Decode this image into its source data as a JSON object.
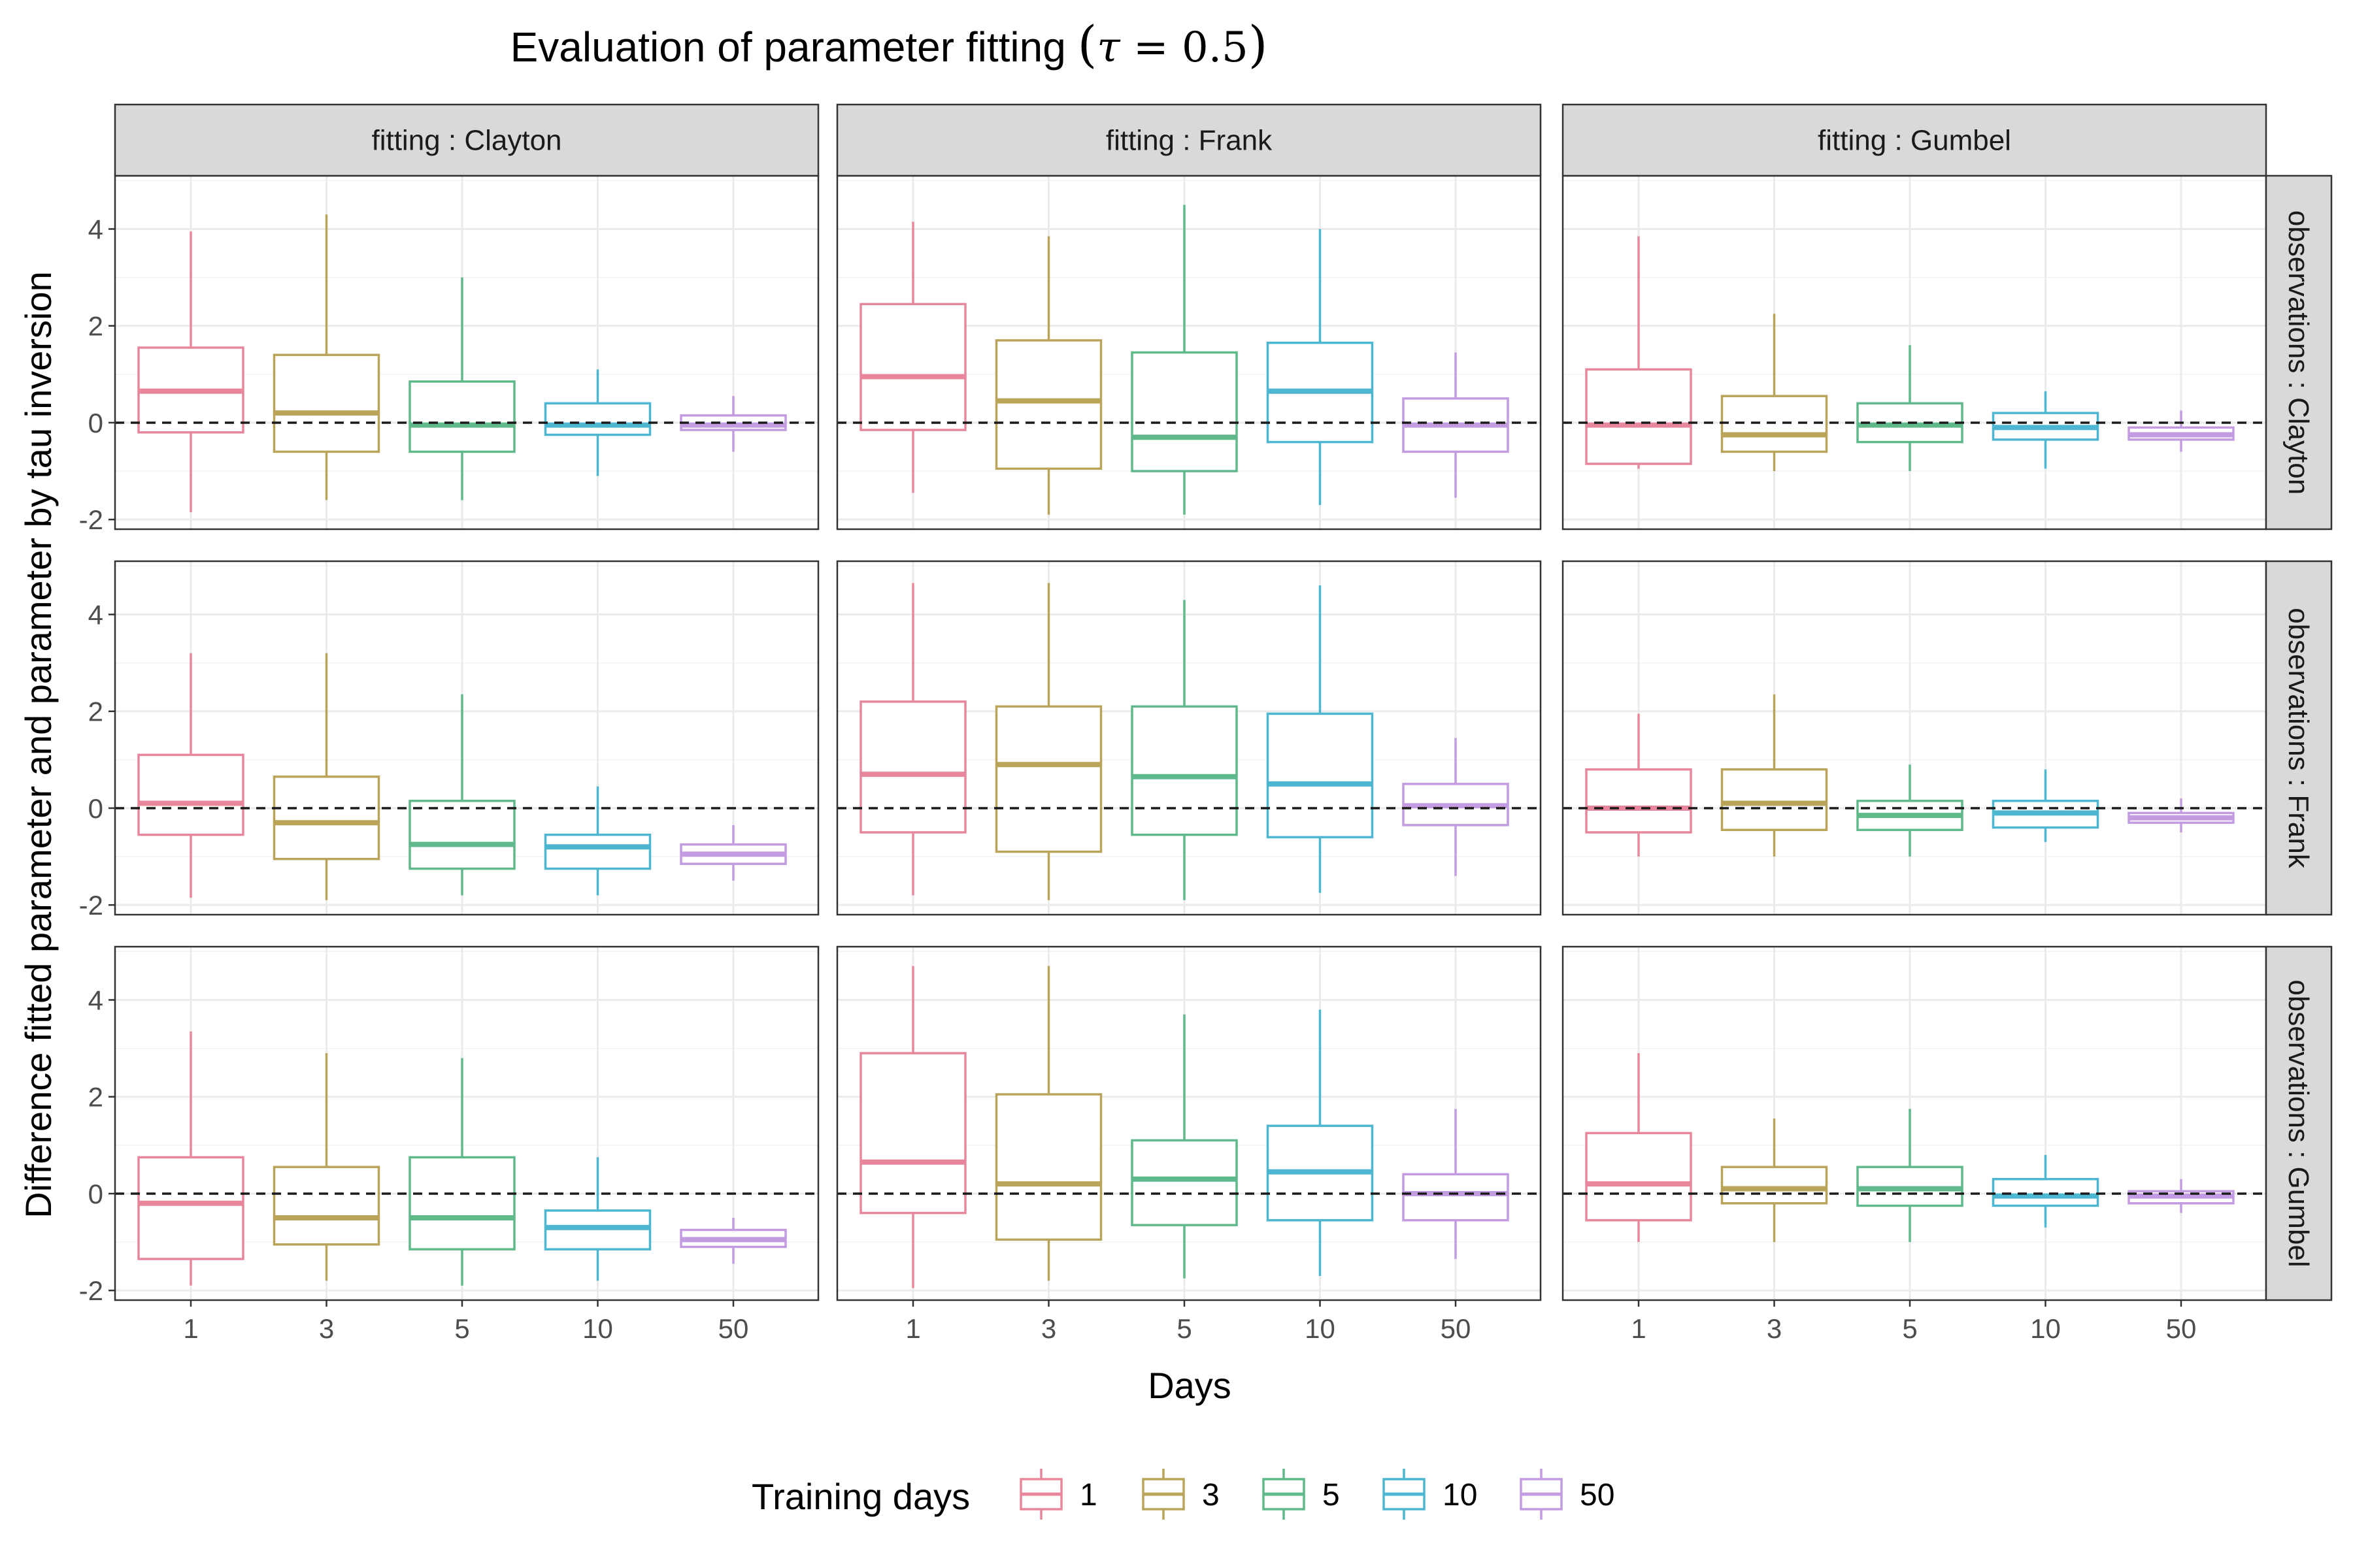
{
  "chart_data": {
    "type": "boxplot",
    "title": "Evaluation of parameter fitting (τ = 0.5)",
    "title_parts": {
      "prefix": "Evaluation of parameter fitting ",
      "tau": "τ",
      "eq": " = 0.5"
    },
    "xlabel": "Days",
    "ylabel": "Difference fitted parameter and parameter by tau inversion",
    "categories": [
      "1",
      "3",
      "5",
      "10",
      "50"
    ],
    "ylim": [
      -2.2,
      5.1
    ],
    "yticks": [
      -2,
      0,
      2,
      4
    ],
    "ytick_labels": [
      "-2",
      "0",
      "2",
      "4"
    ],
    "reference_line": 0,
    "columns": [
      "fitting : Clayton",
      "fitting : Frank",
      "fitting : Gumbel"
    ],
    "rows": [
      "observations : Clayton",
      "observations : Frank",
      "observations : Gumbel"
    ],
    "legend": {
      "title": "Training days",
      "position": "bottom",
      "entries": [
        {
          "label": "1",
          "color": "#E8879C"
        },
        {
          "label": "3",
          "color": "#B9A45A"
        },
        {
          "label": "5",
          "color": "#5FB98A"
        },
        {
          "label": "10",
          "color": "#4DB6D0"
        },
        {
          "label": "50",
          "color": "#C39BE0"
        }
      ]
    },
    "panels": [
      {
        "row": 0,
        "col": 0,
        "boxes": [
          [
            -1.85,
            -0.2,
            0.65,
            1.55,
            3.95
          ],
          [
            -1.6,
            -0.6,
            0.2,
            1.4,
            4.3
          ],
          [
            -1.6,
            -0.6,
            -0.05,
            0.85,
            3.0
          ],
          [
            -1.1,
            -0.25,
            -0.05,
            0.4,
            1.1
          ],
          [
            -0.6,
            -0.15,
            -0.05,
            0.15,
            0.55
          ]
        ]
      },
      {
        "row": 0,
        "col": 1,
        "boxes": [
          [
            -1.45,
            -0.15,
            0.95,
            2.45,
            4.15
          ],
          [
            -1.9,
            -0.95,
            0.45,
            1.7,
            3.85
          ],
          [
            -1.9,
            -1.0,
            -0.3,
            1.45,
            4.5
          ],
          [
            -1.7,
            -0.4,
            0.65,
            1.65,
            4.0
          ],
          [
            -1.55,
            -0.6,
            -0.05,
            0.5,
            1.45
          ]
        ]
      },
      {
        "row": 0,
        "col": 2,
        "boxes": [
          [
            -0.95,
            -0.85,
            -0.05,
            1.1,
            3.85
          ],
          [
            -1.0,
            -0.6,
            -0.25,
            0.55,
            2.25
          ],
          [
            -1.0,
            -0.4,
            -0.05,
            0.4,
            1.6
          ],
          [
            -0.95,
            -0.35,
            -0.1,
            0.2,
            0.65
          ],
          [
            -0.6,
            -0.35,
            -0.25,
            -0.1,
            0.25
          ]
        ]
      },
      {
        "row": 1,
        "col": 0,
        "boxes": [
          [
            -1.85,
            -0.55,
            0.1,
            1.1,
            3.2
          ],
          [
            -1.9,
            -1.05,
            -0.3,
            0.65,
            3.2
          ],
          [
            -1.8,
            -1.25,
            -0.75,
            0.15,
            2.35
          ],
          [
            -1.8,
            -1.25,
            -0.8,
            -0.55,
            0.45
          ],
          [
            -1.5,
            -1.15,
            -0.95,
            -0.75,
            -0.35
          ]
        ]
      },
      {
        "row": 1,
        "col": 1,
        "boxes": [
          [
            -1.8,
            -0.5,
            0.7,
            2.2,
            4.65
          ],
          [
            -1.9,
            -0.9,
            0.9,
            2.1,
            4.65
          ],
          [
            -1.9,
            -0.55,
            0.65,
            2.1,
            4.3
          ],
          [
            -1.75,
            -0.6,
            0.5,
            1.95,
            4.6
          ],
          [
            -1.4,
            -0.35,
            0.05,
            0.5,
            1.45
          ]
        ]
      },
      {
        "row": 1,
        "col": 2,
        "boxes": [
          [
            -1.0,
            -0.5,
            0.0,
            0.8,
            1.95
          ],
          [
            -1.0,
            -0.45,
            0.1,
            0.8,
            2.35
          ],
          [
            -1.0,
            -0.45,
            -0.15,
            0.15,
            0.9
          ],
          [
            -0.7,
            -0.4,
            -0.1,
            0.15,
            0.8
          ],
          [
            -0.5,
            -0.3,
            -0.2,
            -0.1,
            0.2
          ]
        ]
      },
      {
        "row": 2,
        "col": 0,
        "boxes": [
          [
            -1.9,
            -1.35,
            -0.2,
            0.75,
            3.35
          ],
          [
            -1.8,
            -1.05,
            -0.5,
            0.55,
            2.9
          ],
          [
            -1.9,
            -1.15,
            -0.5,
            0.75,
            2.8
          ],
          [
            -1.8,
            -1.15,
            -0.7,
            -0.35,
            0.75
          ],
          [
            -1.45,
            -1.1,
            -0.95,
            -0.75,
            -0.5
          ]
        ]
      },
      {
        "row": 2,
        "col": 1,
        "boxes": [
          [
            -1.95,
            -0.4,
            0.65,
            2.9,
            4.7
          ],
          [
            -1.8,
            -0.95,
            0.2,
            2.05,
            4.7
          ],
          [
            -1.75,
            -0.65,
            0.3,
            1.1,
            3.7
          ],
          [
            -1.7,
            -0.55,
            0.45,
            1.4,
            3.8
          ],
          [
            -1.35,
            -0.55,
            0.0,
            0.4,
            1.75
          ]
        ]
      },
      {
        "row": 2,
        "col": 2,
        "boxes": [
          [
            -1.0,
            -0.55,
            0.2,
            1.25,
            2.9
          ],
          [
            -1.0,
            -0.2,
            0.1,
            0.55,
            1.55
          ],
          [
            -1.0,
            -0.25,
            0.1,
            0.55,
            1.75
          ],
          [
            -0.7,
            -0.25,
            -0.05,
            0.3,
            0.8
          ],
          [
            -0.4,
            -0.2,
            -0.05,
            0.05,
            0.3
          ]
        ]
      }
    ]
  }
}
